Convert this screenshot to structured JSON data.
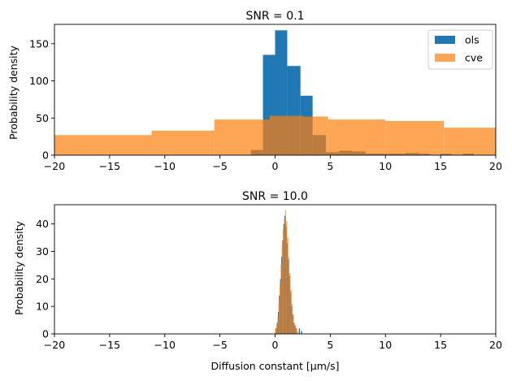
{
  "chart_data": [
    {
      "type": "bar",
      "title": "SNR = 0.1",
      "xlabel": "",
      "ylabel": "Probability density",
      "xlim": [
        -20,
        20
      ],
      "ylim": [
        0,
        176
      ],
      "xticks": [
        -20,
        -15,
        -10,
        -5,
        0,
        5,
        10,
        15,
        20
      ],
      "xtick_labels": [
        "−20",
        "−15",
        "−10",
        "−5",
        "0",
        "5",
        "10",
        "15",
        "20"
      ],
      "yticks": [
        0,
        50,
        100,
        150
      ],
      "ytick_labels": [
        "0",
        "50",
        "100",
        "150"
      ],
      "legend": {
        "placement": "top-right",
        "entries": [
          "ols",
          "cve"
        ]
      },
      "series": [
        {
          "name": "ols",
          "color": "#1f77b4",
          "opacity": 1.0,
          "bins": [
            {
              "x0": -2.2,
              "x1": -1.1,
              "value": 7
            },
            {
              "x0": -1.1,
              "x1": 0.0,
              "value": 135
            },
            {
              "x0": 0.0,
              "x1": 1.1,
              "value": 168
            },
            {
              "x0": 1.1,
              "x1": 2.3,
              "value": 120
            },
            {
              "x0": 2.3,
              "x1": 3.4,
              "value": 80
            },
            {
              "x0": 3.4,
              "x1": 4.6,
              "value": 27
            },
            {
              "x0": 4.6,
              "x1": 5.8,
              "value": 4
            },
            {
              "x0": 5.8,
              "x1": 7.0,
              "value": 6
            },
            {
              "x0": 7.0,
              "x1": 8.2,
              "value": 5
            },
            {
              "x0": 8.2,
              "x1": 9.4,
              "value": 2
            },
            {
              "x0": 9.4,
              "x1": 10.6,
              "value": 2
            },
            {
              "x0": 10.6,
              "x1": 11.8,
              "value": 2
            },
            {
              "x0": 11.8,
              "x1": 13.0,
              "value": 3
            },
            {
              "x0": 13.0,
              "x1": 14.0,
              "value": 2
            },
            {
              "x0": 15.0,
              "x1": 16.0,
              "value": 2
            },
            {
              "x0": 17.0,
              "x1": 18.0,
              "value": 2
            }
          ]
        },
        {
          "name": "cve",
          "color": "#ff7f0e",
          "opacity": 0.7,
          "bins": [
            {
              "x0": -25.0,
              "x1": -16.8,
              "value": 27
            },
            {
              "x0": -16.8,
              "x1": -11.2,
              "value": 27
            },
            {
              "x0": -11.2,
              "x1": -5.5,
              "value": 33
            },
            {
              "x0": -5.5,
              "x1": -0.5,
              "value": 48
            },
            {
              "x0": -0.5,
              "x1": 2.5,
              "value": 53
            },
            {
              "x0": 2.5,
              "x1": 4.8,
              "value": 52
            },
            {
              "x0": 4.8,
              "x1": 10.0,
              "value": 48
            },
            {
              "x0": 10.0,
              "x1": 15.3,
              "value": 46
            },
            {
              "x0": 15.3,
              "x1": 25.0,
              "value": 37
            }
          ]
        }
      ]
    },
    {
      "type": "bar",
      "title": "SNR = 10.0",
      "xlabel": "Diffusion constant [μm/s]",
      "ylabel": "Probability density",
      "xlim": [
        -20,
        20
      ],
      "ylim": [
        0,
        47
      ],
      "xticks": [
        -20,
        -15,
        -10,
        -5,
        0,
        5,
        10,
        15,
        20
      ],
      "xtick_labels": [
        "−20",
        "−15",
        "−10",
        "−5",
        "0",
        "5",
        "10",
        "15",
        "20"
      ],
      "yticks": [
        0,
        10,
        20,
        30,
        40
      ],
      "ytick_labels": [
        "0",
        "10",
        "20",
        "30",
        "40"
      ],
      "series": [
        {
          "name": "ols",
          "color": "#1f77b4",
          "opacity": 1.0,
          "bins": [
            {
              "x0": 0.05,
              "x1": 0.15,
              "value": 2
            },
            {
              "x0": 0.15,
              "x1": 0.25,
              "value": 4
            },
            {
              "x0": 0.25,
              "x1": 0.35,
              "value": 8
            },
            {
              "x0": 0.35,
              "x1": 0.45,
              "value": 14
            },
            {
              "x0": 0.45,
              "x1": 0.55,
              "value": 20
            },
            {
              "x0": 0.55,
              "x1": 0.65,
              "value": 28
            },
            {
              "x0": 0.65,
              "x1": 0.75,
              "value": 34
            },
            {
              "x0": 0.75,
              "x1": 0.85,
              "value": 40
            },
            {
              "x0": 0.85,
              "x1": 0.95,
              "value": 43
            },
            {
              "x0": 0.95,
              "x1": 1.05,
              "value": 39
            },
            {
              "x0": 1.05,
              "x1": 1.15,
              "value": 33
            },
            {
              "x0": 1.15,
              "x1": 1.25,
              "value": 27
            },
            {
              "x0": 1.25,
              "x1": 1.35,
              "value": 21
            },
            {
              "x0": 1.35,
              "x1": 1.45,
              "value": 15
            },
            {
              "x0": 1.45,
              "x1": 1.55,
              "value": 10
            },
            {
              "x0": 1.55,
              "x1": 1.65,
              "value": 7
            },
            {
              "x0": 1.65,
              "x1": 1.75,
              "value": 4
            },
            {
              "x0": 1.75,
              "x1": 1.85,
              "value": 3
            },
            {
              "x0": 1.85,
              "x1": 1.95,
              "value": 2
            },
            {
              "x0": 2.15,
              "x1": 2.25,
              "value": 2
            },
            {
              "x0": 2.35,
              "x1": 2.45,
              "value": 1
            }
          ]
        },
        {
          "name": "cve",
          "color": "#ff7f0e",
          "opacity": 0.7,
          "bins": [
            {
              "x0": 0.0,
              "x1": 0.1,
              "value": 2
            },
            {
              "x0": 0.1,
              "x1": 0.2,
              "value": 3
            },
            {
              "x0": 0.2,
              "x1": 0.3,
              "value": 6
            },
            {
              "x0": 0.3,
              "x1": 0.4,
              "value": 11
            },
            {
              "x0": 0.4,
              "x1": 0.5,
              "value": 18
            },
            {
              "x0": 0.5,
              "x1": 0.6,
              "value": 25
            },
            {
              "x0": 0.6,
              "x1": 0.7,
              "value": 32
            },
            {
              "x0": 0.7,
              "x1": 0.8,
              "value": 38
            },
            {
              "x0": 0.8,
              "x1": 0.9,
              "value": 42
            },
            {
              "x0": 0.9,
              "x1": 1.0,
              "value": 45
            },
            {
              "x0": 1.0,
              "x1": 1.1,
              "value": 41
            },
            {
              "x0": 1.1,
              "x1": 1.2,
              "value": 35
            },
            {
              "x0": 1.2,
              "x1": 1.3,
              "value": 28
            },
            {
              "x0": 1.3,
              "x1": 1.4,
              "value": 22
            },
            {
              "x0": 1.4,
              "x1": 1.5,
              "value": 16
            },
            {
              "x0": 1.5,
              "x1": 1.6,
              "value": 11
            },
            {
              "x0": 1.6,
              "x1": 1.7,
              "value": 7
            },
            {
              "x0": 1.7,
              "x1": 1.8,
              "value": 4
            },
            {
              "x0": 1.8,
              "x1": 1.9,
              "value": 3
            },
            {
              "x0": 1.9,
              "x1": 2.0,
              "value": 2
            },
            {
              "x0": 2.0,
              "x1": 2.1,
              "value": 1
            }
          ]
        }
      ]
    }
  ]
}
